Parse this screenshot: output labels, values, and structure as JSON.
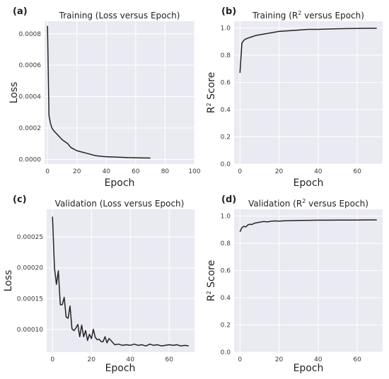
{
  "chart_data": [
    {
      "panel": "(a)",
      "type": "line",
      "title": "Training (Loss versus Epoch)",
      "xlabel": "Epoch",
      "ylabel": "Loss",
      "xlim": [
        -2,
        100
      ],
      "ylim": [
        -3e-05,
        0.00088
      ],
      "xticks": [
        "0",
        "20",
        "40",
        "60",
        "80",
        "100"
      ],
      "yticks": [
        "0.0000",
        "0.0002",
        "0.0004",
        "0.0006",
        "0.0008"
      ],
      "grid": true,
      "series": [
        {
          "color": "#222222",
          "x": [
            0,
            1,
            2,
            3,
            4,
            5,
            6,
            7,
            8,
            9,
            10,
            11,
            12,
            13,
            14,
            15,
            16,
            17,
            18,
            19,
            20,
            22,
            24,
            26,
            28,
            30,
            32,
            34,
            36,
            38,
            40,
            45,
            50,
            55,
            60,
            65,
            70
          ],
          "y": [
            0.00085,
            0.00028,
            0.00023,
            0.0002,
            0.000185,
            0.000175,
            0.000165,
            0.000155,
            0.000145,
            0.000135,
            0.000125,
            0.000118,
            0.000112,
            0.000105,
            9.8e-05,
            8.5e-05,
            7.5e-05,
            7e-05,
            6.5e-05,
            6e-05,
            5.5e-05,
            5e-05,
            4.5e-05,
            4e-05,
            3.5e-05,
            3e-05,
            2.5e-05,
            2.2e-05,
            2e-05,
            1.8e-05,
            1.7e-05,
            1.5e-05,
            1.3e-05,
            1.1e-05,
            1e-05,
            9e-06,
            8e-06
          ]
        }
      ]
    },
    {
      "panel": "(b)",
      "type": "line",
      "title": "Training (R² versus Epoch)",
      "xlabel": "Epoch",
      "ylabel": "R² Score",
      "xlim": [
        -3,
        73
      ],
      "ylim": [
        0,
        1.05
      ],
      "xticks": [
        "0",
        "20",
        "40",
        "60"
      ],
      "yticks": [
        "0.0",
        "0.2",
        "0.4",
        "0.6",
        "0.8",
        "1.0"
      ],
      "grid": true,
      "series": [
        {
          "color": "#222222",
          "x": [
            0,
            1,
            2,
            3,
            4,
            5,
            6,
            7,
            8,
            10,
            12,
            14,
            16,
            18,
            20,
            25,
            30,
            35,
            40,
            45,
            50,
            55,
            60,
            65,
            70
          ],
          "y": [
            0.67,
            0.89,
            0.91,
            0.92,
            0.925,
            0.93,
            0.935,
            0.94,
            0.945,
            0.95,
            0.955,
            0.96,
            0.965,
            0.97,
            0.975,
            0.98,
            0.985,
            0.99,
            0.99,
            0.993,
            0.995,
            0.996,
            0.997,
            0.998,
            0.998
          ]
        }
      ]
    },
    {
      "panel": "(c)",
      "type": "line",
      "title": "Validation (Loss versus Epoch)",
      "xlabel": "Epoch",
      "ylabel": "Loss",
      "xlim": [
        -3,
        73
      ],
      "ylim": [
        6.3e-05,
        0.000295
      ],
      "xticks": [
        "0",
        "20",
        "40",
        "60"
      ],
      "yticks": [
        "0.00010",
        "0.00015",
        "0.00020",
        "0.00025"
      ],
      "grid": true,
      "series": [
        {
          "color": "#222222",
          "x": [
            0,
            1,
            2,
            3,
            4,
            5,
            6,
            7,
            8,
            9,
            10,
            11,
            12,
            13,
            14,
            15,
            16,
            17,
            18,
            19,
            20,
            21,
            22,
            23,
            24,
            25,
            26,
            27,
            28,
            29,
            30,
            32,
            34,
            36,
            38,
            40,
            42,
            44,
            46,
            48,
            50,
            52,
            54,
            56,
            58,
            60,
            62,
            64,
            66,
            68,
            70
          ],
          "y": [
            0.000283,
            0.0002,
            0.000173,
            0.000195,
            0.00014,
            0.00014,
            0.000152,
            0.00012,
            0.000118,
            0.000138,
            0.000101,
            9.8e-05,
            0.000102,
            0.000108,
            8.8e-05,
            0.000107,
            8.8e-05,
            9.8e-05,
            8.2e-05,
            9.2e-05,
            8.5e-05,
            0.0001,
            8.7e-05,
            8.3e-05,
            8.4e-05,
            8e-05,
            8e-05,
            8.8e-05,
            7.8e-05,
            8.5e-05,
            8.2e-05,
            7.5e-05,
            7.6e-05,
            7.4e-05,
            7.5e-05,
            7.4e-05,
            7.6e-05,
            7.4e-05,
            7.5e-05,
            7.3e-05,
            7.6e-05,
            7.4e-05,
            7.5e-05,
            7.3e-05,
            7.4e-05,
            7.5e-05,
            7.4e-05,
            7.5e-05,
            7.3e-05,
            7.4e-05,
            7.3e-05
          ]
        }
      ]
    },
    {
      "panel": "(d)",
      "type": "line",
      "title": "Validation (R² versus Epoch)",
      "xlabel": "Epoch",
      "ylabel": "R² Score",
      "xlim": [
        -3,
        73
      ],
      "ylim": [
        0,
        1.05
      ],
      "xticks": [
        "0",
        "20",
        "40",
        "60"
      ],
      "yticks": [
        "0.0",
        "0.2",
        "0.4",
        "0.6",
        "0.8",
        "1.0"
      ],
      "grid": true,
      "series": [
        {
          "color": "#222222",
          "x": [
            0,
            1,
            2,
            3,
            4,
            5,
            6,
            7,
            8,
            9,
            10,
            12,
            14,
            16,
            18,
            20,
            22,
            25,
            30,
            35,
            40,
            45,
            50,
            55,
            60,
            65,
            70
          ],
          "y": [
            0.885,
            0.915,
            0.925,
            0.92,
            0.935,
            0.94,
            0.938,
            0.945,
            0.95,
            0.952,
            0.955,
            0.96,
            0.958,
            0.962,
            0.965,
            0.963,
            0.965,
            0.966,
            0.968,
            0.969,
            0.97,
            0.97,
            0.971,
            0.971,
            0.971,
            0.972,
            0.972
          ]
        }
      ]
    }
  ]
}
